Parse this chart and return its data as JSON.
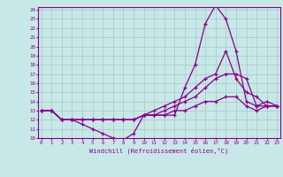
{
  "xlabel": "Windchill (Refroidissement éolien,°C)",
  "bg_color": "#c8e8e8",
  "grid_color": "#aacccc",
  "line_color": "#880088",
  "marker_color": "#880088",
  "xmin": 0,
  "xmax": 23,
  "ymin": 10,
  "ymax": 24,
  "series": [
    [
      13.0,
      13.0,
      12.0,
      12.0,
      11.5,
      11.0,
      10.5,
      10.0,
      9.8,
      10.5,
      12.5,
      12.5,
      12.5,
      12.5,
      15.5,
      18.0,
      22.5,
      24.5,
      23.0,
      19.5,
      14.0,
      13.5,
      13.5,
      13.5
    ],
    [
      13.0,
      13.0,
      12.0,
      12.0,
      12.0,
      12.0,
      12.0,
      12.0,
      12.0,
      12.0,
      12.5,
      13.0,
      13.5,
      14.0,
      14.5,
      15.5,
      16.5,
      17.0,
      19.5,
      16.5,
      15.0,
      14.5,
      13.5,
      13.5
    ],
    [
      13.0,
      13.0,
      12.0,
      12.0,
      12.0,
      12.0,
      12.0,
      12.0,
      12.0,
      12.0,
      12.5,
      12.5,
      13.0,
      13.5,
      14.0,
      14.5,
      15.5,
      16.5,
      17.0,
      17.0,
      16.5,
      13.5,
      14.0,
      13.5
    ],
    [
      13.0,
      13.0,
      12.0,
      12.0,
      12.0,
      12.0,
      12.0,
      12.0,
      12.0,
      12.0,
      12.5,
      12.5,
      12.5,
      13.0,
      13.0,
      13.5,
      14.0,
      14.0,
      14.5,
      14.5,
      13.5,
      13.0,
      13.5,
      13.5
    ]
  ]
}
